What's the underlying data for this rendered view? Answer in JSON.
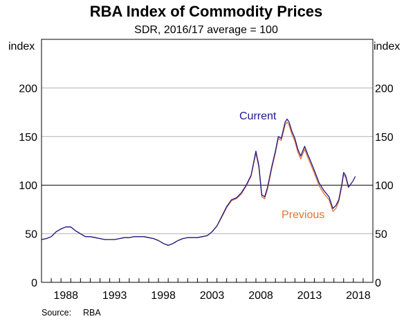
{
  "chart_data": {
    "type": "line",
    "title": "RBA Index of Commodity Prices",
    "subtitle": "SDR, 2016/17 average = 100",
    "ylabel_left": "index",
    "ylabel_right": "index",
    "xlim": [
      1986.0,
      2020.0
    ],
    "ylim": [
      0,
      250
    ],
    "yticks": [
      0,
      50,
      100,
      150,
      200
    ],
    "ytick_labels": [
      "0",
      "50",
      "100",
      "150",
      "200"
    ],
    "xticks": [
      1988,
      1993,
      1998,
      2003,
      2008,
      2013,
      2018
    ],
    "xtick_labels": [
      "1988",
      "1993",
      "1998",
      "2003",
      "2008",
      "2013",
      "2018"
    ],
    "grid": true,
    "reference_line": 100,
    "source": {
      "label": "Source:",
      "value": "RBA"
    },
    "colors": {
      "current": "#1a1a8c",
      "previous": "#e8702a",
      "grid": "#b3b3b3",
      "axis": "#000000"
    },
    "series": [
      {
        "name": "Current",
        "label_color": "#1a1a8c",
        "x": [
          1986.0,
          1986.5,
          1987.0,
          1987.5,
          1988.0,
          1988.5,
          1989.0,
          1989.5,
          1990.0,
          1990.5,
          1991.0,
          1991.5,
          1992.0,
          1992.5,
          1993.0,
          1993.5,
          1994.0,
          1994.5,
          1995.0,
          1995.5,
          1996.0,
          1996.5,
          1997.0,
          1997.5,
          1998.0,
          1998.5,
          1999.0,
          1999.5,
          2000.0,
          2000.5,
          2001.0,
          2001.5,
          2002.0,
          2002.5,
          2003.0,
          2003.5,
          2004.0,
          2004.5,
          2005.0,
          2005.5,
          2006.0,
          2006.5,
          2007.0,
          2007.5,
          2008.0,
          2008.3,
          2008.6,
          2008.9,
          2009.2,
          2009.6,
          2010.0,
          2010.3,
          2010.6,
          2011.0,
          2011.2,
          2011.4,
          2011.7,
          2012.0,
          2012.3,
          2012.6,
          2013.0,
          2013.3,
          2013.6,
          2014.0,
          2014.5,
          2015.0,
          2015.5,
          2015.9,
          2016.2,
          2016.5,
          2016.8,
          2017.0,
          2017.2,
          2017.5,
          2017.8,
          2018.0,
          2018.2
        ],
        "values": [
          44,
          45,
          47,
          52,
          55,
          57,
          57,
          53,
          50,
          47,
          47,
          46,
          45,
          44,
          44,
          44,
          45,
          46,
          46,
          47,
          47,
          47,
          46,
          45,
          43,
          40,
          38,
          40,
          43,
          45,
          46,
          46,
          46,
          47,
          48,
          52,
          58,
          68,
          78,
          85,
          87,
          92,
          100,
          110,
          135,
          120,
          90,
          88,
          98,
          118,
          135,
          150,
          148,
          165,
          168,
          165,
          155,
          148,
          137,
          130,
          140,
          132,
          125,
          115,
          102,
          94,
          88,
          76,
          79,
          85,
          100,
          113,
          110,
          98,
          102,
          105,
          109
        ]
      },
      {
        "name": "Previous",
        "label_color": "#e8702a",
        "x": [
          1986.0,
          1986.5,
          1987.0,
          1987.5,
          1988.0,
          1988.5,
          1989.0,
          1989.5,
          1990.0,
          1990.5,
          1991.0,
          1991.5,
          1992.0,
          1992.5,
          1993.0,
          1993.5,
          1994.0,
          1994.5,
          1995.0,
          1995.5,
          1996.0,
          1996.5,
          1997.0,
          1997.5,
          1998.0,
          1998.5,
          1999.0,
          1999.5,
          2000.0,
          2000.5,
          2001.0,
          2001.5,
          2002.0,
          2002.5,
          2003.0,
          2003.5,
          2004.0,
          2004.5,
          2005.0,
          2005.5,
          2006.0,
          2006.5,
          2007.0,
          2007.5,
          2008.0,
          2008.3,
          2008.6,
          2008.9,
          2009.2,
          2009.6,
          2010.0,
          2010.3,
          2010.6,
          2011.0,
          2011.2,
          2011.4,
          2011.7,
          2012.0,
          2012.3,
          2012.6,
          2013.0,
          2013.3,
          2013.6,
          2014.0,
          2014.5,
          2015.0,
          2015.5,
          2015.9,
          2016.2,
          2016.5,
          2016.8,
          2017.0,
          2017.2,
          2017.5
        ],
        "values": [
          44,
          45,
          47,
          52,
          55,
          57,
          57,
          53,
          50,
          47,
          47,
          46,
          45,
          44,
          44,
          44,
          45,
          46,
          46,
          47,
          47,
          47,
          46,
          45,
          43,
          40,
          38,
          40,
          43,
          45,
          46,
          46,
          46,
          47,
          48,
          52,
          58,
          67,
          77,
          84,
          86,
          91,
          99,
          109,
          133,
          118,
          88,
          86,
          96,
          116,
          133,
          148,
          146,
          162,
          165,
          162,
          152,
          145,
          134,
          127,
          137,
          129,
          122,
          112,
          99,
          91,
          85,
          73,
          76,
          83,
          98,
          111,
          108,
          97
        ]
      }
    ]
  }
}
